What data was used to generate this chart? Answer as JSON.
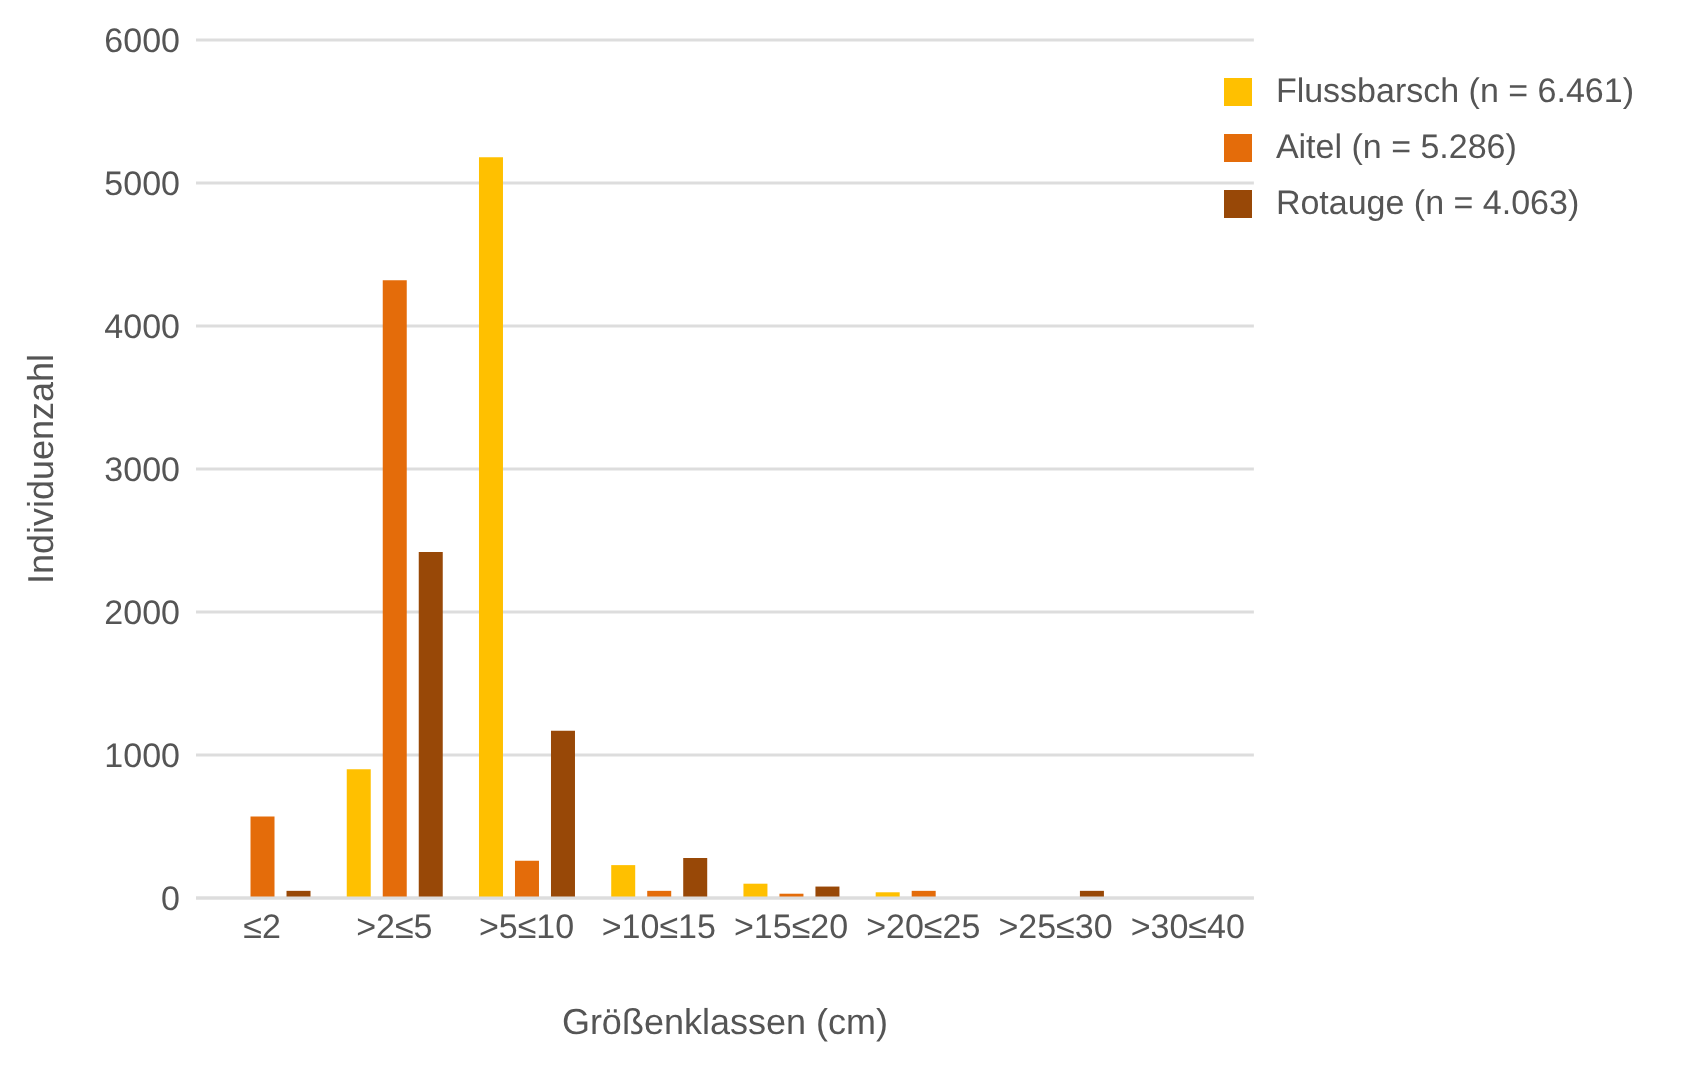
{
  "chart_data": {
    "type": "bar",
    "xlabel": "Größenklassen (cm)",
    "ylabel": "Individuenzahl",
    "categories": [
      "≤2",
      ">2≤5",
      ">5≤10",
      ">10≤15",
      ">15≤20",
      ">20≤25",
      ">25≤30",
      ">30≤40"
    ],
    "series": [
      {
        "name": "Flussbarsch (n = 6.461)",
        "color": "#ffc000",
        "values": [
          0,
          900,
          5180,
          230,
          100,
          40,
          0,
          0
        ]
      },
      {
        "name": "Aitel (n = 5.286)",
        "color": "#e46c0a",
        "values": [
          570,
          4320,
          260,
          50,
          30,
          50,
          0,
          0
        ]
      },
      {
        "name": "Rotauge (n = 4.063)",
        "color": "#984807",
        "values": [
          50,
          2420,
          1170,
          280,
          80,
          null,
          50,
          null
        ]
      }
    ],
    "ylim": [
      0,
      6000
    ],
    "yticks": [
      0,
      1000,
      2000,
      3000,
      4000,
      5000,
      6000
    ],
    "grid": "y",
    "legend": "top right"
  }
}
